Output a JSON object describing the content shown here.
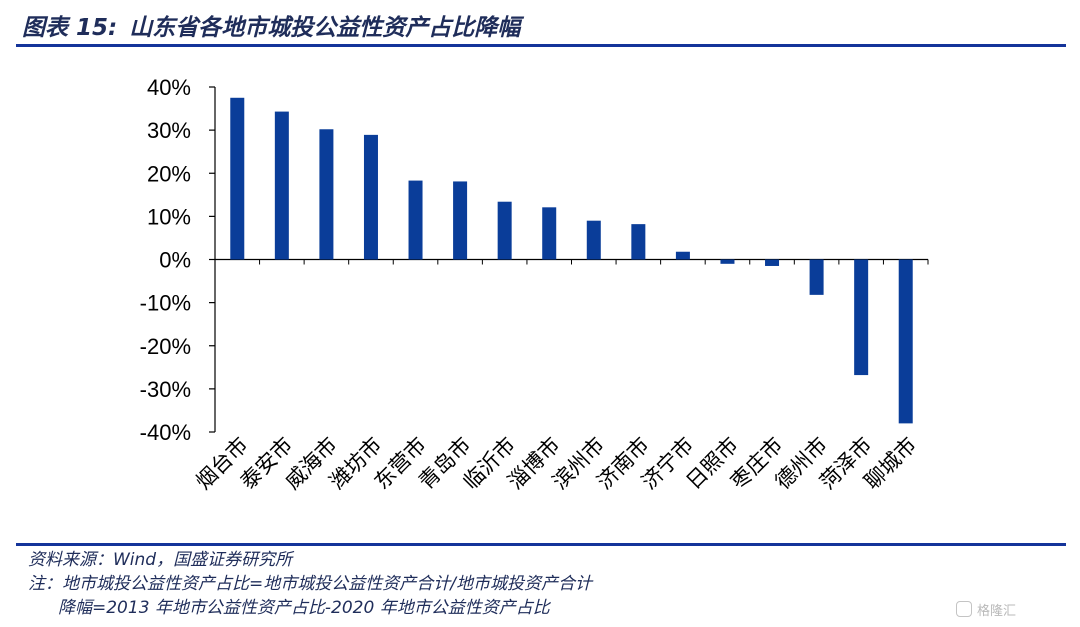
{
  "header": {
    "figure_number": "图表 15:",
    "title": "山东省各地市城投公益性资产占比降幅"
  },
  "chart_data": {
    "type": "bar",
    "categories": [
      "烟台市",
      "泰安市",
      "威海市",
      "潍坊市",
      "东营市",
      "青岛市",
      "临沂市",
      "淄博市",
      "滨州市",
      "济南市",
      "济宁市",
      "日照市",
      "枣庄市",
      "德州市",
      "菏泽市",
      "聊城市"
    ],
    "values": [
      37.5,
      34.3,
      30.2,
      28.9,
      18.3,
      18.1,
      13.4,
      12.1,
      9.0,
      8.2,
      1.8,
      -1.0,
      -1.5,
      -8.2,
      -26.8,
      -38.0
    ],
    "unit": "%",
    "ylim": [
      -40,
      40
    ],
    "yticks": [
      40,
      30,
      20,
      10,
      0,
      -10,
      -20,
      -30,
      -40
    ],
    "ytick_labels": [
      "40%",
      "30%",
      "20%",
      "10%",
      "0%",
      "-10%",
      "-20%",
      "-30%",
      "-40%"
    ],
    "grid": false,
    "bar_color": "#0a3d99"
  },
  "footer": {
    "source": "资料来源：Wind，国盛证券研究所",
    "note_line1": "注：地市城投公益性资产占比=地市城投公益性资产合计/地市城投资产合计",
    "note_line2": "降幅=2013 年地市公益性资产占比-2020 年地市公益性资产占比"
  },
  "watermark": {
    "text": "格隆汇"
  }
}
